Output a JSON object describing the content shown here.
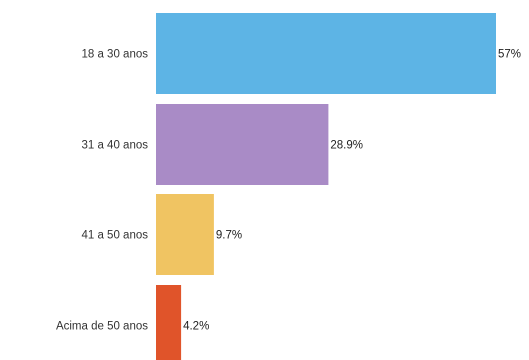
{
  "chart_data": {
    "type": "bar",
    "orientation": "horizontal",
    "categories": [
      "18 a 30 anos",
      "31 a 40 anos",
      "41 a 50 anos",
      "Acima de 50 anos"
    ],
    "values": [
      57,
      28.9,
      9.7,
      4.2
    ],
    "value_labels": [
      "57%",
      "28.9%",
      "9.7%",
      "4.2%"
    ],
    "colors": [
      "#5db4e5",
      "#a98bc6",
      "#f0c462",
      "#e0542a"
    ],
    "xlim": [
      0,
      57
    ],
    "grid": false,
    "legend": "none"
  }
}
